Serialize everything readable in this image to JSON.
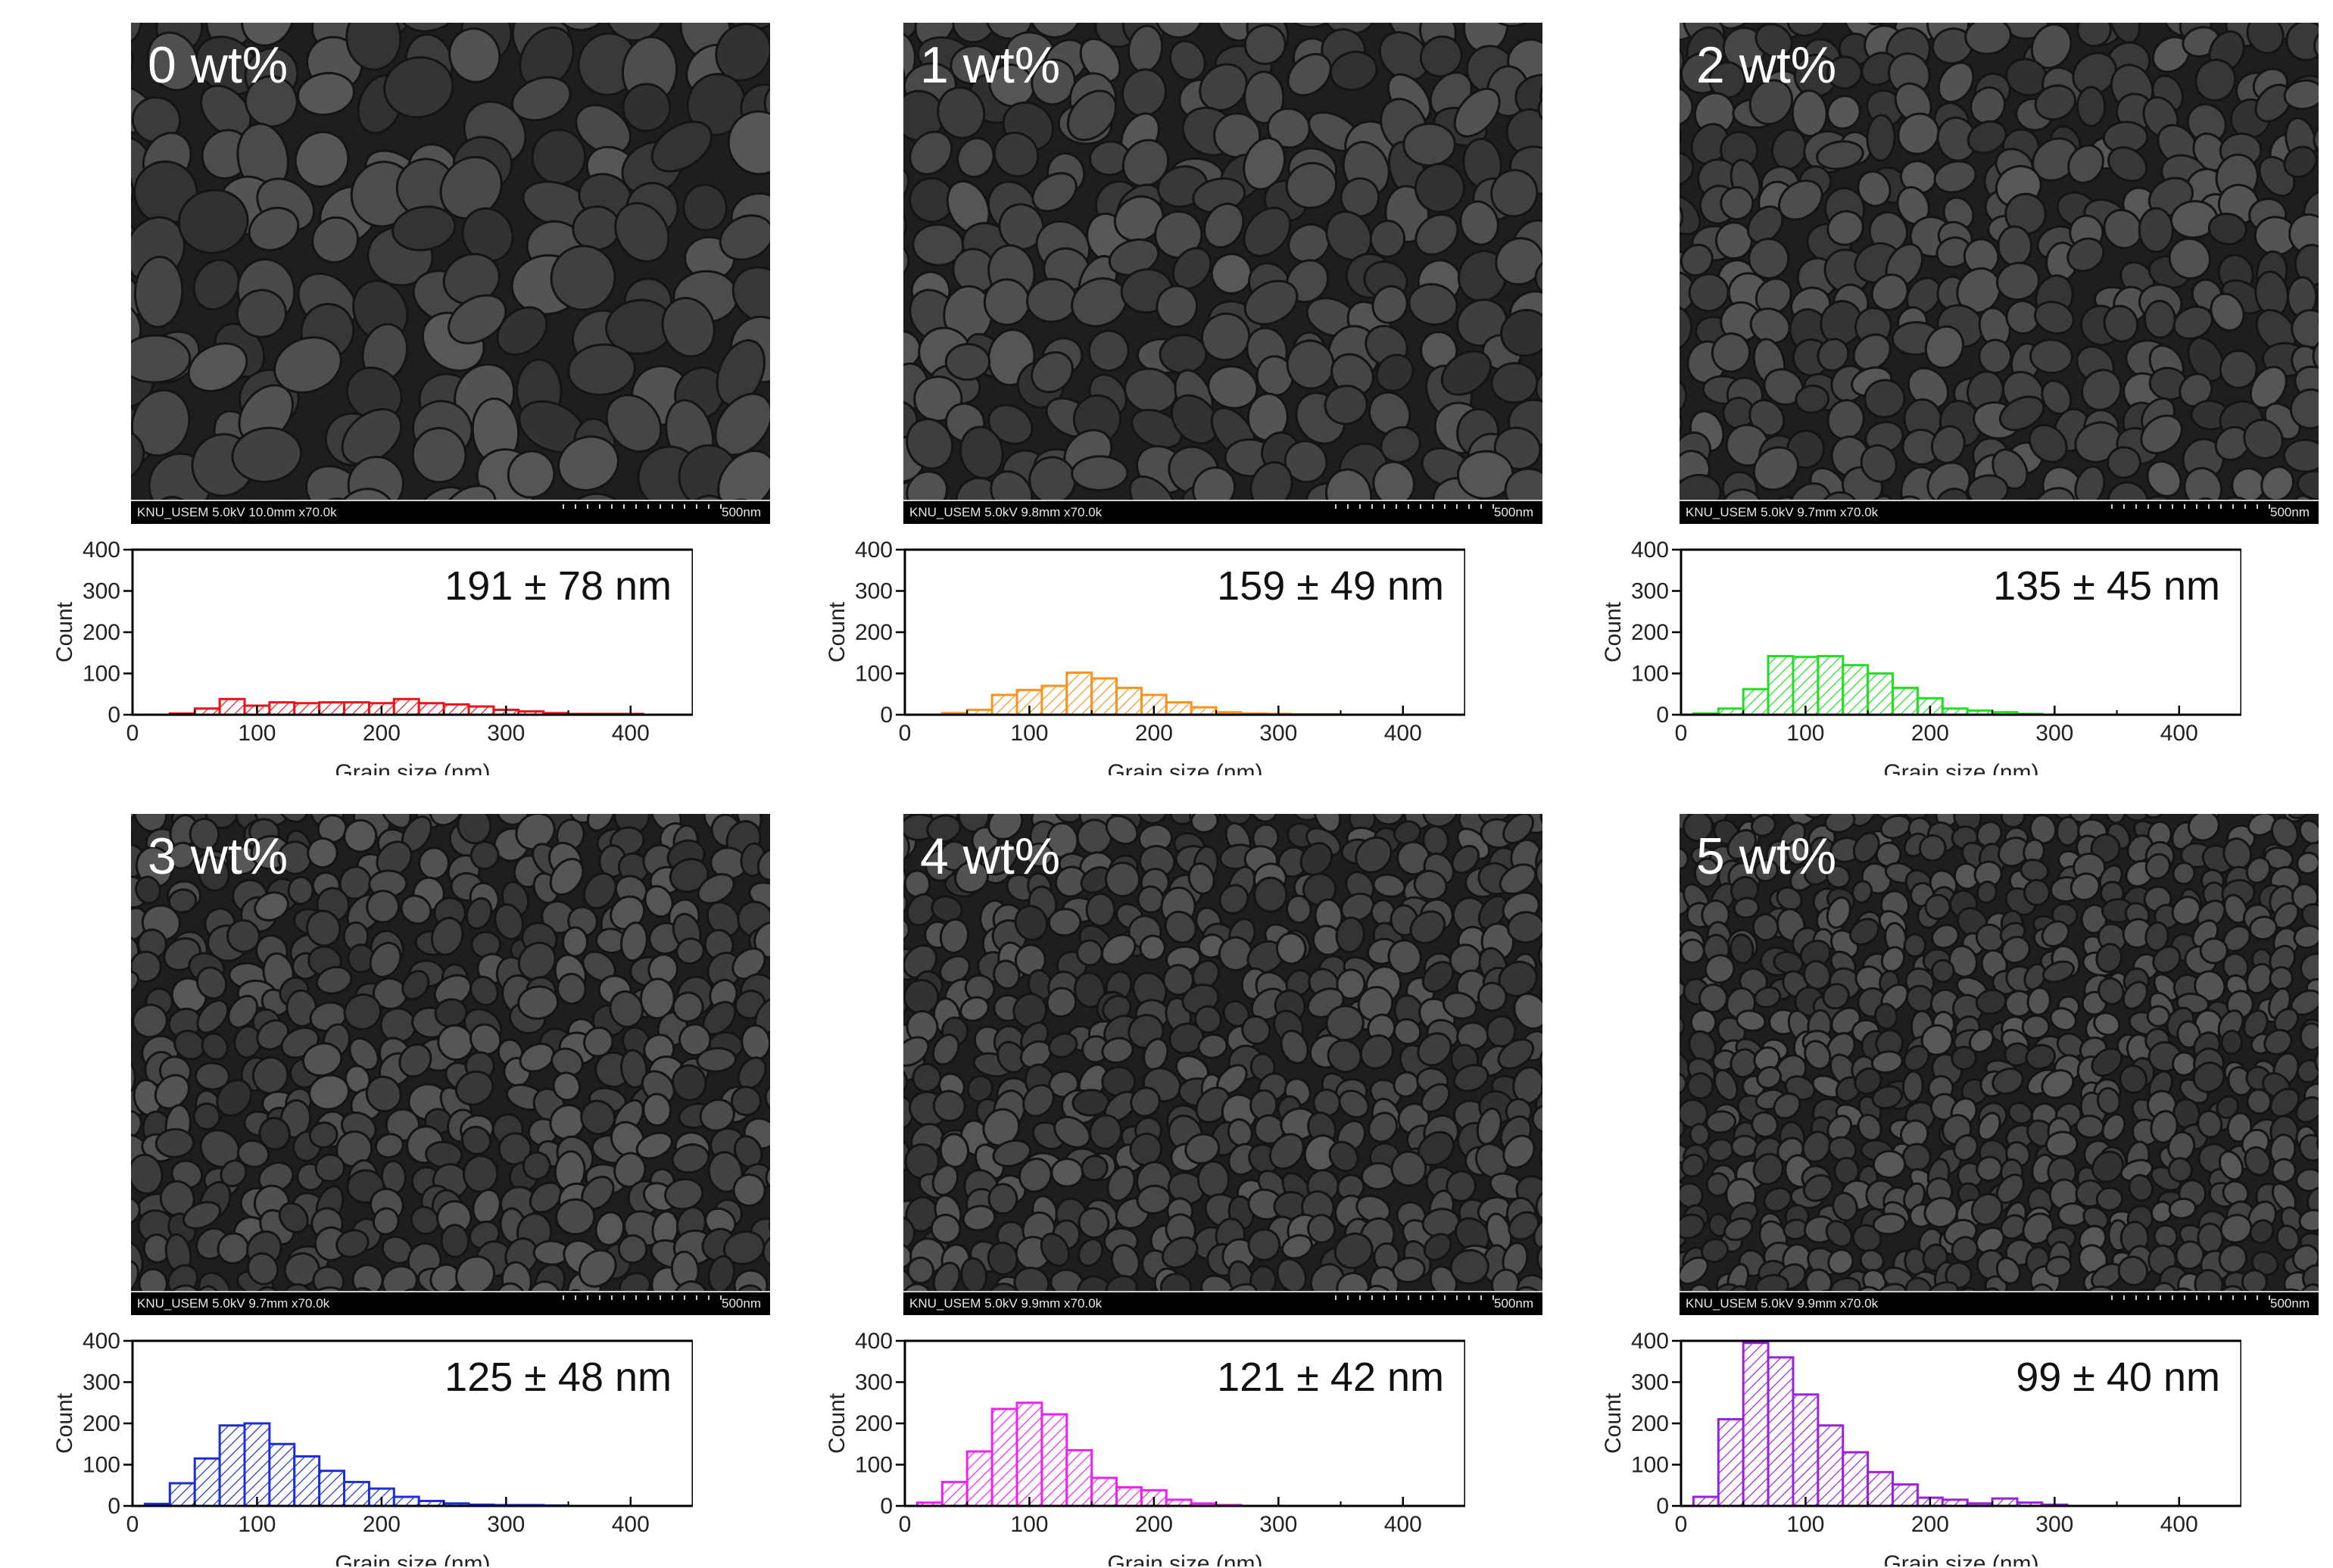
{
  "chart_data": [
    {
      "type": "bar",
      "panel_label": "0 wt%",
      "sem_info": "KNU_USEM 5.0kV 10.0mm x70.0k",
      "scale_bar": "500nm",
      "annotation": "191 ± 78 nm",
      "xlabel": "Grain size (nm)",
      "ylabel": "Count",
      "xlim": [
        0,
        450
      ],
      "ylim": [
        0,
        400
      ],
      "xticks": [
        0,
        100,
        200,
        300,
        400
      ],
      "yticks": [
        0,
        100,
        200,
        300,
        400
      ],
      "bin_width": 20,
      "bins": [
        40,
        60,
        80,
        100,
        120,
        140,
        160,
        180,
        200,
        220,
        240,
        260,
        280,
        300,
        320,
        340,
        360,
        380,
        400
      ],
      "values": [
        3,
        15,
        38,
        22,
        30,
        28,
        30,
        30,
        28,
        38,
        28,
        25,
        20,
        12,
        8,
        4,
        2,
        2,
        2
      ],
      "color": "#e8141c"
    },
    {
      "type": "bar",
      "panel_label": "1 wt%",
      "sem_info": "KNU_USEM 5.0kV 9.8mm x70.0k",
      "scale_bar": "500nm",
      "annotation": "159 ± 49 nm",
      "xlabel": "Grain size (nm)",
      "ylabel": "Count",
      "xlim": [
        0,
        450
      ],
      "ylim": [
        0,
        400
      ],
      "xticks": [
        0,
        100,
        200,
        300,
        400
      ],
      "yticks": [
        0,
        100,
        200,
        300,
        400
      ],
      "bin_width": 20,
      "bins": [
        40,
        60,
        80,
        100,
        120,
        140,
        160,
        180,
        200,
        220,
        240,
        260,
        280,
        300,
        320,
        340
      ],
      "values": [
        4,
        12,
        48,
        60,
        70,
        102,
        88,
        65,
        48,
        30,
        18,
        6,
        3,
        2,
        1,
        1
      ],
      "color": "#f7931e"
    },
    {
      "type": "bar",
      "panel_label": "2 wt%",
      "sem_info": "KNU_USEM 5.0kV 9.7mm x70.0k",
      "scale_bar": "500nm",
      "annotation": "135 ± 45 nm",
      "xlabel": "Grain size (nm)",
      "ylabel": "Count",
      "xlim": [
        0,
        450
      ],
      "ylim": [
        0,
        400
      ],
      "xticks": [
        0,
        100,
        200,
        300,
        400
      ],
      "yticks": [
        0,
        100,
        200,
        300,
        400
      ],
      "bin_width": 20,
      "bins": [
        20,
        40,
        60,
        80,
        100,
        120,
        140,
        160,
        180,
        200,
        220,
        240,
        260,
        280
      ],
      "values": [
        3,
        15,
        62,
        142,
        140,
        142,
        120,
        100,
        65,
        40,
        15,
        10,
        6,
        2
      ],
      "color": "#22dd22"
    },
    {
      "type": "bar",
      "panel_label": "3 wt%",
      "sem_info": "KNU_USEM 5.0kV 9.7mm x70.0k",
      "scale_bar": "500nm",
      "annotation": "125 ± 48 nm",
      "xlabel": "Grain size (nm)",
      "ylabel": "Count",
      "xlim": [
        0,
        450
      ],
      "ylim": [
        0,
        400
      ],
      "xticks": [
        0,
        100,
        200,
        300,
        400
      ],
      "yticks": [
        0,
        100,
        200,
        300,
        400
      ],
      "bin_width": 20,
      "bins": [
        20,
        40,
        60,
        80,
        100,
        120,
        140,
        160,
        180,
        200,
        220,
        240,
        260,
        280,
        300,
        320,
        340
      ],
      "values": [
        5,
        55,
        115,
        195,
        200,
        150,
        120,
        85,
        58,
        42,
        22,
        12,
        6,
        3,
        2,
        2,
        1
      ],
      "color": "#1c2fd6"
    },
    {
      "type": "bar",
      "panel_label": "4 wt%",
      "sem_info": "KNU_USEM 5.0kV 9.9mm x70.0k",
      "scale_bar": "500nm",
      "annotation": "121 ± 42 nm",
      "xlabel": "Grain size (nm)",
      "ylabel": "Count",
      "xlim": [
        0,
        450
      ],
      "ylim": [
        0,
        400
      ],
      "xticks": [
        0,
        100,
        200,
        300,
        400
      ],
      "yticks": [
        0,
        100,
        200,
        300,
        400
      ],
      "bin_width": 20,
      "bins": [
        20,
        40,
        60,
        80,
        100,
        120,
        140,
        160,
        180,
        200,
        220,
        240,
        260
      ],
      "values": [
        8,
        58,
        132,
        235,
        250,
        222,
        135,
        68,
        45,
        38,
        15,
        6,
        2
      ],
      "color": "#ee22ee"
    },
    {
      "type": "bar",
      "panel_label": "5 wt%",
      "sem_info": "KNU_USEM 5.0kV 9.9mm x70.0k",
      "scale_bar": "500nm",
      "annotation": "99 ± 40 nm",
      "xlabel": "Grain size (nm)",
      "ylabel": "Count",
      "xlim": [
        0,
        450
      ],
      "ylim": [
        0,
        400
      ],
      "xticks": [
        0,
        100,
        200,
        300,
        400
      ],
      "yticks": [
        0,
        100,
        200,
        300,
        400
      ],
      "bin_width": 20,
      "bins": [
        20,
        40,
        60,
        80,
        100,
        120,
        140,
        160,
        180,
        200,
        220,
        240,
        260,
        280,
        300
      ],
      "values": [
        22,
        210,
        395,
        360,
        270,
        195,
        130,
        82,
        52,
        20,
        15,
        6,
        18,
        8,
        3
      ],
      "color": "#9a22dd"
    }
  ]
}
